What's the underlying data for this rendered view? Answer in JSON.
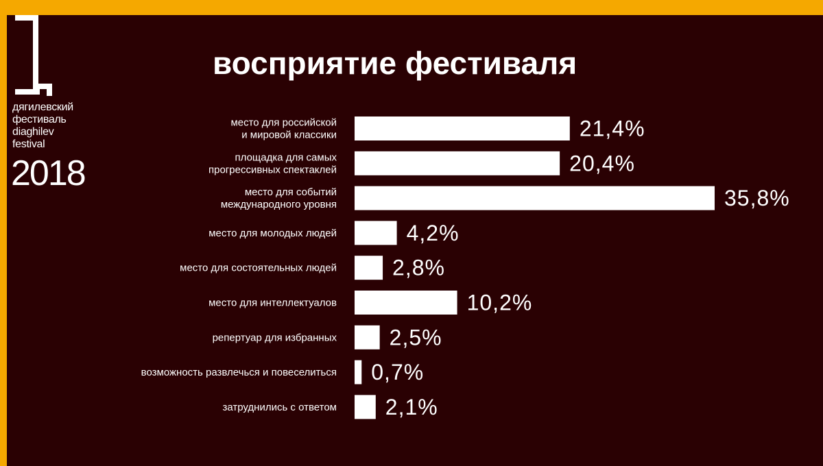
{
  "colors": {
    "frame": "#f5a800",
    "background": "#2a0103",
    "bars": "#ffffff",
    "text": "#ffffff"
  },
  "logo": {
    "mark_icon": "diaghilev-festival-glyph",
    "lines": [
      "дягилевский",
      "фестиваль",
      "diaghilev",
      "festival"
    ],
    "year": "2018"
  },
  "chart_data": {
    "type": "bar",
    "orientation": "horizontal",
    "title": "восприятие фестиваля",
    "xlabel": "",
    "ylabel": "",
    "xlim": [
      0,
      35.8
    ],
    "grid": false,
    "legend": "none",
    "categories": [
      [
        "место для российской",
        "и мировой классики"
      ],
      [
        "площадка для самых",
        "прогрессивных спектаклей"
      ],
      [
        "место для событий",
        "международного уровня"
      ],
      [
        "место для молодых людей"
      ],
      [
        "место для состоятельных людей"
      ],
      [
        "место для интеллектуалов"
      ],
      [
        "репертуар для избранных"
      ],
      [
        "возможность развлечься и повеселиться"
      ],
      [
        "затруднились с ответом"
      ]
    ],
    "values": [
      21.4,
      20.4,
      35.8,
      4.2,
      2.8,
      10.2,
      2.5,
      0.7,
      2.1
    ],
    "value_labels": [
      "21,4%",
      "20,4%",
      "35,8%",
      "4,2%",
      "2,8%",
      "10,2%",
      "2,5%",
      "0,7%",
      "2,1%"
    ]
  }
}
